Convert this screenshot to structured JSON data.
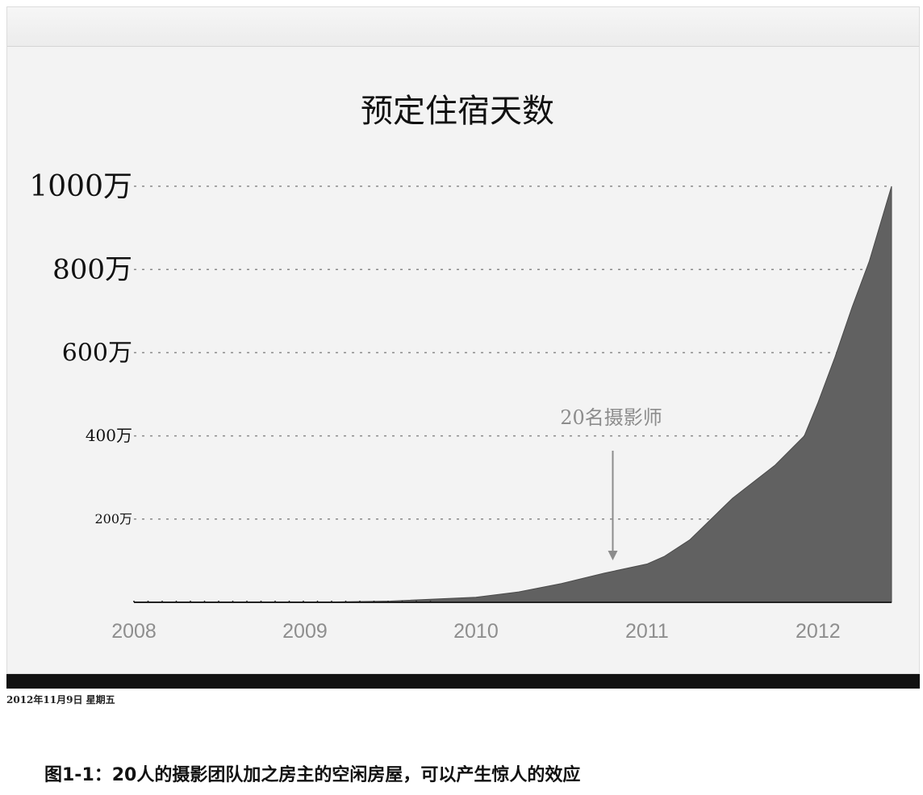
{
  "chart_data": {
    "type": "area",
    "title": "预定住宿天数",
    "xlabel": "",
    "ylabel": "",
    "x_ticks": [
      "2008",
      "2009",
      "2010",
      "2011",
      "2012"
    ],
    "y_ticks": [
      "1000万",
      "800万",
      "600万",
      "400万",
      "200万"
    ],
    "y_tick_values": [
      1000,
      800,
      600,
      400,
      200
    ],
    "x_range": [
      2008.0,
      2012.43
    ],
    "ylim": [
      0,
      1000
    ],
    "grid": "horizontal-dotted",
    "series": [
      {
        "x": [
          2008.0,
          2009.0,
          2009.5,
          2010.0,
          2010.25,
          2010.5,
          2010.75,
          2011.0,
          2011.1,
          2011.25,
          2011.5,
          2011.75,
          2011.92,
          2012.0,
          2012.1,
          2012.2,
          2012.3,
          2012.43
        ],
        "values": [
          0,
          0,
          3,
          12,
          25,
          45,
          70,
          92,
          110,
          150,
          250,
          330,
          400,
          480,
          590,
          710,
          820,
          1000
        ]
      }
    ],
    "annotations": [
      {
        "text": "20名摄影师",
        "x": 2010.8,
        "y": 75
      }
    ],
    "colors": {
      "area": "#616161",
      "grid": "#8a8a8a",
      "annotation": "#8c8c8c"
    }
  },
  "footer": {
    "date": "2012年11月9日 星期五",
    "caption": "图1-1：20人的摄影团队加之房主的空闲房屋，可以产生惊人的效应"
  }
}
